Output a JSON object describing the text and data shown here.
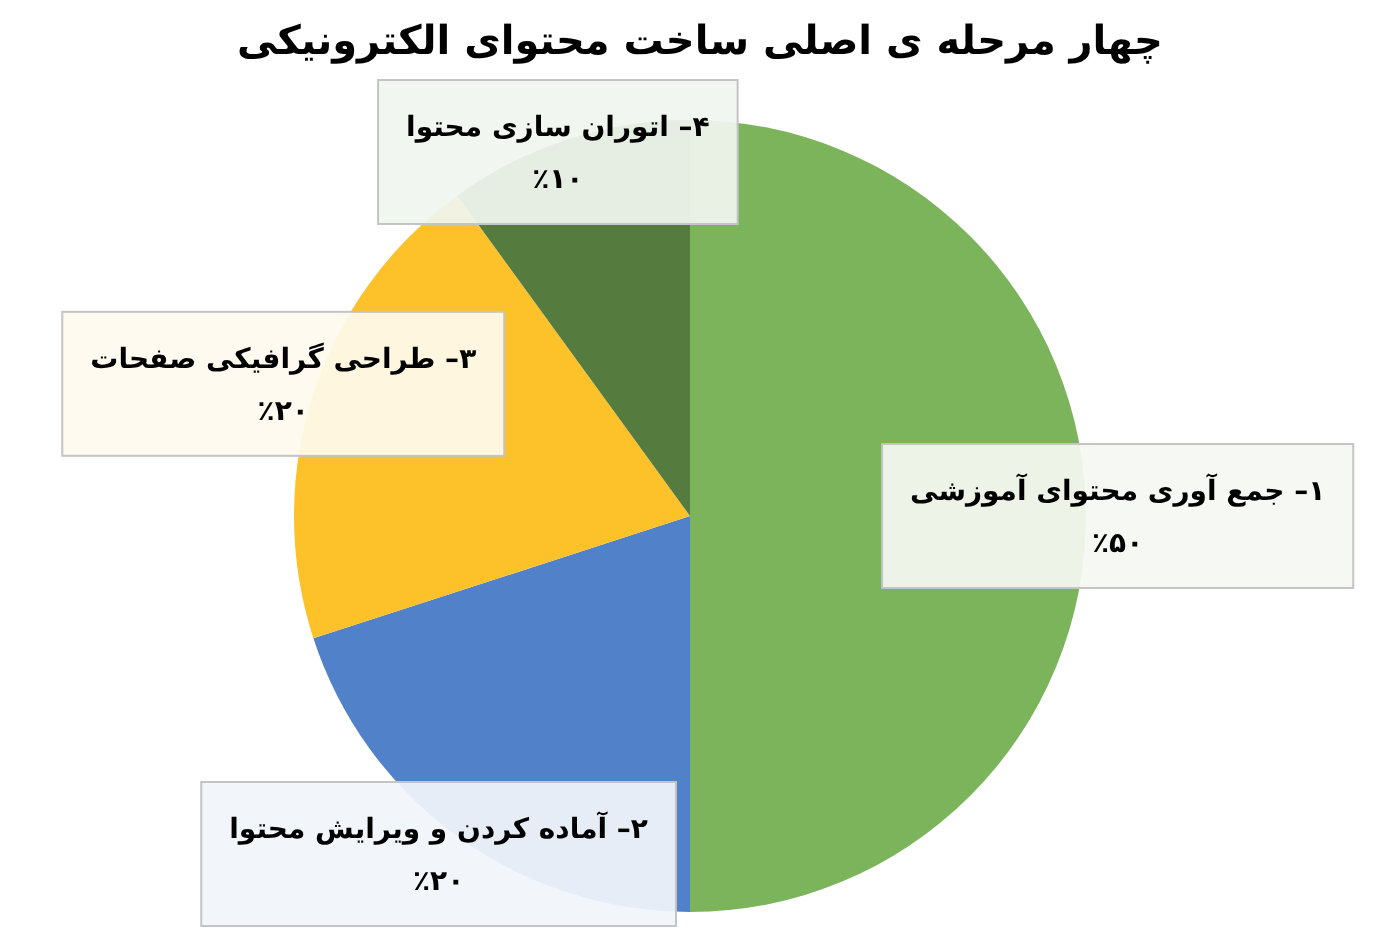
{
  "chart_data": {
    "type": "pie",
    "title": "چهار مرحله ی اصلی ساخت محتوای الکترونیکی",
    "categories": [
      "۱– جمع آوری محتوای آموزشی",
      "۲– آماده کردن و ویرایش محتوا",
      "۳– طراحی گرافیکی صفحات",
      "۴– اتوران سازی محتوا"
    ],
    "values": [
      50,
      20,
      20,
      10
    ],
    "colors": [
      "#7cb45b",
      "#5181c9",
      "#fdc12a",
      "#557c3e"
    ],
    "value_labels": [
      "٪۵۰",
      "٪۲۰",
      "٪۲۰",
      "٪۱۰"
    ]
  }
}
